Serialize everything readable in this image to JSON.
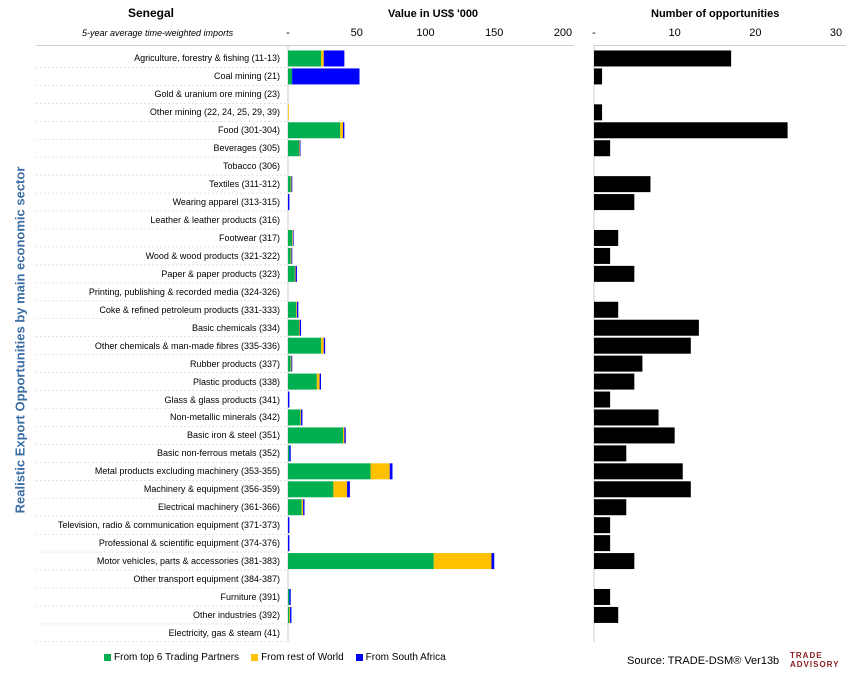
{
  "header": {
    "country": "Senegal",
    "subtitle": "5-year average time-weighted imports",
    "value_title": "Value in US$ '000",
    "count_title": "Number of opportunities",
    "ylabel": "Realistic Export Opportunities by main economic sector"
  },
  "colors": {
    "top6": "#00b050",
    "rest": "#ffc000",
    "sa": "#0000ff",
    "count": "#000000",
    "label_text": "#3b6ea5",
    "logo_text": "#8a1c1c"
  },
  "legend": [
    {
      "label": "From top 6 Trading Partners",
      "key": "top6"
    },
    {
      "label": "From rest of World",
      "key": "rest"
    },
    {
      "label": "From South Africa",
      "key": "sa"
    }
  ],
  "footer": {
    "source": "Source: TRADE-DSM® Ver13b",
    "logo_line1": "TRADE",
    "logo_line2": "ADVISORY"
  },
  "chart_data": {
    "type": "bar",
    "orientation": "horizontal",
    "categories": [
      "Agriculture, forestry & fishing (11-13)",
      "Coal mining (21)",
      "Gold & uranium ore mining (23)",
      "Other mining (22, 24, 25, 29, 39)",
      "Food (301-304)",
      "Beverages (305)",
      "Tobacco (306)",
      "Textiles (311-312)",
      "Wearing apparel (313-315)",
      "Leather & leather products (316)",
      "Footwear (317)",
      "Wood & wood products (321-322)",
      "Paper & paper products (323)",
      "Printing, publishing & recorded media (324-326)",
      "Coke & refined petroleum products (331-333)",
      "Basic chemicals (334)",
      "Other chemicals & man-made fibres (335-336)",
      "Rubber products (337)",
      "Plastic products (338)",
      "Glass & glass products (341)",
      "Non-metallic minerals (342)",
      "Basic iron & steel (351)",
      "Basic non-ferrous metals (352)",
      "Metal products excluding machinery (353-355)",
      "Machinery & equipment (356-359)",
      "Electrical machinery (361-366)",
      "Television, radio & communication equipment (371-373)",
      "Professional & scientific equipment (374-376)",
      "Motor vehicles, parts & accessories (381-383)",
      "Other transport equipment (384-387)",
      "Furniture (391)",
      "Other industries (392)",
      "Electricity, gas & steam (41)"
    ],
    "value_chart": {
      "xlabel": "Value in US$ '000",
      "xlim": [
        0,
        200
      ],
      "ticks": [
        "-",
        "50",
        "100",
        "150",
        "200"
      ],
      "tick_values": [
        0,
        50,
        100,
        150,
        200
      ],
      "series": [
        {
          "name": "From top 6 Trading Partners",
          "values": [
            24,
            3,
            0,
            0,
            38,
            8,
            0,
            2,
            0,
            0,
            3,
            2,
            5,
            0,
            6,
            8,
            24,
            2,
            21,
            0,
            9,
            40,
            1,
            60,
            33,
            10,
            0,
            0,
            106,
            0,
            1,
            1,
            0
          ]
        },
        {
          "name": "From rest of World",
          "values": [
            2,
            0,
            0,
            0.5,
            2,
            0.5,
            0,
            0.5,
            0,
            0,
            0.5,
            0.5,
            0.5,
            0,
            0.5,
            0.5,
            2,
            0.5,
            2,
            0,
            0.5,
            1,
            0,
            14,
            10,
            1,
            0,
            0,
            42,
            0,
            0,
            0.5,
            0
          ]
        },
        {
          "name": "From South Africa",
          "values": [
            15,
            49,
            0,
            0,
            1,
            0.5,
            0,
            0.5,
            1,
            0,
            0.5,
            0.5,
            1,
            0,
            1,
            1,
            1,
            0.5,
            1,
            1,
            1,
            1,
            1,
            2,
            2,
            1,
            1,
            1,
            2,
            0,
            1,
            1,
            0
          ]
        }
      ]
    },
    "count_chart": {
      "xlabel": "Number of opportunities",
      "xlim": [
        0,
        30
      ],
      "ticks": [
        "-",
        "10",
        "20",
        "30"
      ],
      "tick_values": [
        0,
        10,
        20,
        30
      ],
      "series": [
        {
          "name": "Number of opportunities",
          "values": [
            17,
            1,
            0,
            1,
            24,
            2,
            0,
            7,
            5,
            0,
            3,
            2,
            5,
            0,
            3,
            13,
            12,
            6,
            5,
            2,
            8,
            10,
            4,
            11,
            12,
            4,
            2,
            2,
            5,
            0,
            2,
            3,
            0
          ]
        }
      ]
    },
    "legend_position": "bottom"
  }
}
